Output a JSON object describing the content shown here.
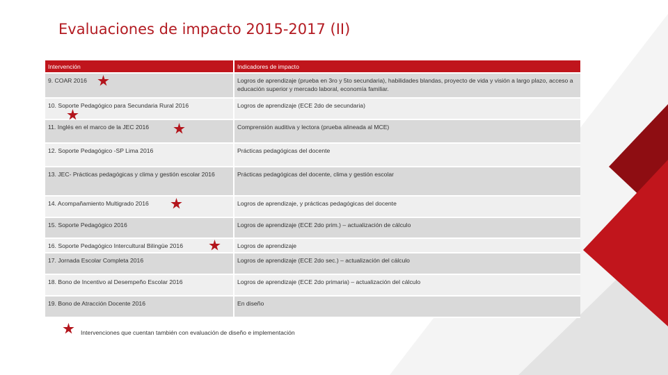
{
  "slide": {
    "title": "Evaluaciones de impacto 2015-2017 (II)",
    "accent_color": "#c0151c",
    "table": {
      "headers": [
        "Intervención",
        "Indicadores de impacto"
      ],
      "rows": [
        {
          "intervention": "9. COAR 2016",
          "indicators": "Logros de aprendizaje (prueba en 3ro y 5to secundaria), habilidades blandas, proyecto de vida y visión a largo plazo, acceso a educación superior y mercado laboral, economía familiar.",
          "starred": true
        },
        {
          "intervention": "10. Soporte Pedagógico para Secundaria Rural 2016",
          "indicators": "Logros de aprendizaje (ECE 2do de secundaria)",
          "starred": true
        },
        {
          "intervention": "11. Inglés en el marco de la JEC 2016",
          "indicators": "Comprensión auditiva y lectora (prueba alineada al MCE)",
          "starred": true
        },
        {
          "intervention": "12. Soporte Pedagógico -SP Lima 2016",
          "indicators": "Prácticas pedagógicas del docente",
          "starred": false
        },
        {
          "intervention": "13. JEC- Prácticas pedagógicas y clima y gestión escolar 2016",
          "indicators": "Prácticas pedagógicas del docente, clima y gestión escolar",
          "starred": false
        },
        {
          "intervention": "14. Acompañamiento Multigrado 2016",
          "indicators": "Logros de aprendizaje, y prácticas pedagógicas del docente",
          "starred": true
        },
        {
          "intervention": "15. Soporte Pedagógico 2016",
          "indicators": "Logros de aprendizaje (ECE 2do prim.) – actualización de cálculo",
          "starred": false
        },
        {
          "intervention": "16. Soporte Pedagógico Intercultural Bilingüe 2016",
          "indicators": "Logros de aprendizaje",
          "starred": true
        },
        {
          "intervention": "17. Jornada Escolar Completa 2016",
          "indicators": "Logros de aprendizaje (ECE 2do sec.) – actualización del cálculo",
          "starred": false
        },
        {
          "intervention": "18. Bono de Incentivo al Desempeño Escolar 2016",
          "indicators": "Logros de aprendizaje (ECE 2do primaria) – actualización del cálculo",
          "starred": false
        },
        {
          "intervention": "19. Bono de Atracción Docente 2016",
          "indicators": "En diseño",
          "starred": false
        }
      ]
    },
    "legend": {
      "text": "Intervenciones que cuentan también con evaluación de diseño e implementación",
      "icon": "star-icon"
    }
  }
}
